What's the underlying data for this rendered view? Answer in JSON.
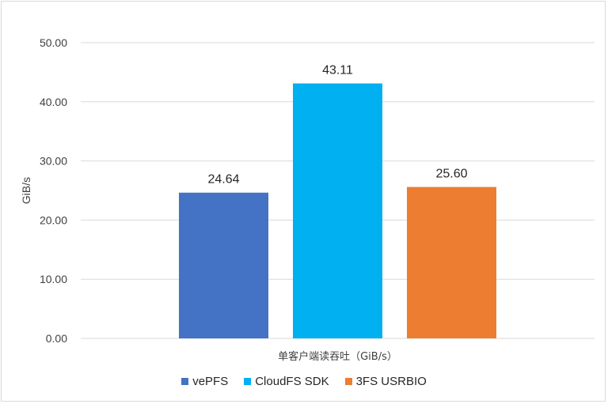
{
  "chart_data": {
    "type": "bar",
    "title": "",
    "categories": [
      "单客户端读吞吐（GiB/s）"
    ],
    "xlabel": "",
    "ylabel": "GiB/s",
    "ylim": [
      0,
      50
    ],
    "yticks": [
      "0.00",
      "10.00",
      "20.00",
      "30.00",
      "40.00",
      "50.00"
    ],
    "grid": true,
    "legend_position": "bottom",
    "series": [
      {
        "name": "vePFS",
        "values": [
          24.64
        ],
        "label": "24.64",
        "color": "#4472c4"
      },
      {
        "name": "CloudFS SDK",
        "values": [
          43.11
        ],
        "label": "43.11",
        "color": "#00b0f0"
      },
      {
        "name": "3FS USRBIO",
        "values": [
          25.6
        ],
        "label": "25.60",
        "color": "#ed7d31"
      }
    ]
  }
}
